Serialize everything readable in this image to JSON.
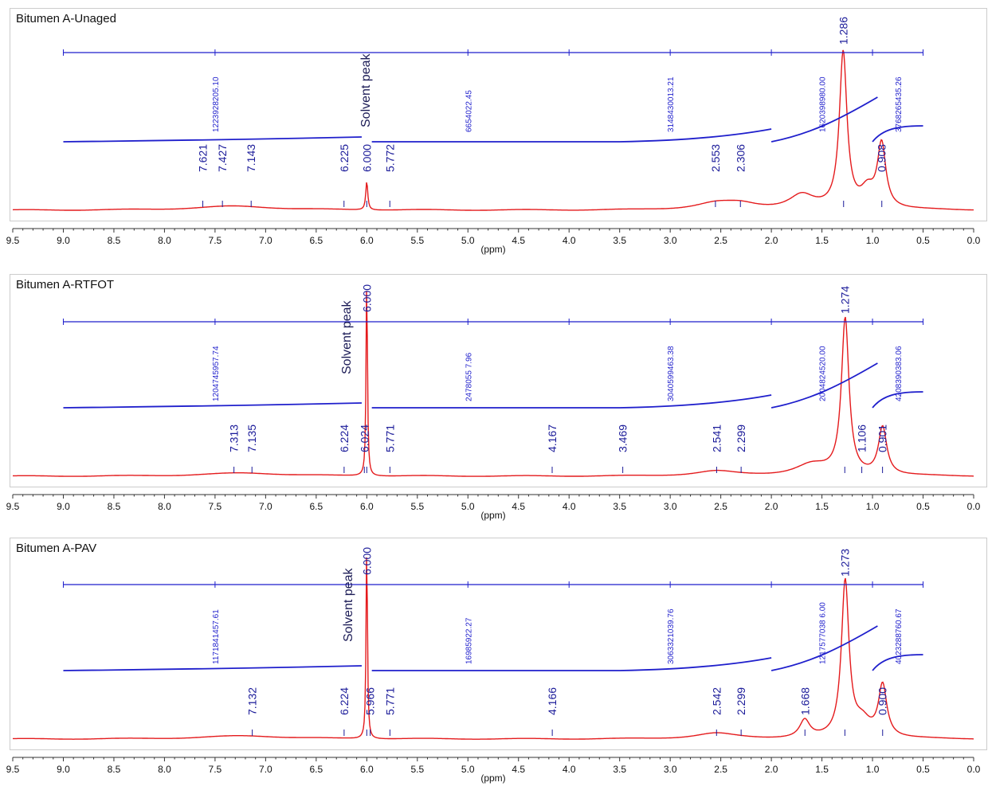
{
  "colors": {
    "spectrum": "#e41a1c",
    "integral": "#1f1fcc",
    "label": "#1a1a99",
    "axis": "#333333"
  },
  "axis_ticks": [
    "9.5",
    "9.0",
    "8.5",
    "8.0",
    "7.5",
    "7.0",
    "6.5",
    "6.0",
    "5.5",
    "5.0",
    "4.5",
    "4.0",
    "3.5",
    "3.0",
    "2.5",
    "2.0",
    "1.5",
    "1.0",
    "0.5",
    "0.0"
  ],
  "xlabel": "(ppm)",
  "solvent_label": "Solvent peak",
  "chart_data": [
    {
      "type": "line",
      "title": "Bitumen A-Unaged",
      "xlabel": "(ppm)",
      "xlim": [
        9.5,
        0.0
      ],
      "x_reversed": true,
      "peaks": [
        {
          "ppm": 7.621,
          "label": "7.621"
        },
        {
          "ppm": 7.427,
          "label": "7.427"
        },
        {
          "ppm": 7.143,
          "label": "7.143"
        },
        {
          "ppm": 6.225,
          "label": "6.225"
        },
        {
          "ppm": 6.0,
          "label": "6.000"
        },
        {
          "ppm": 5.772,
          "label": "5.772"
        },
        {
          "ppm": 2.553,
          "label": "2.553"
        },
        {
          "ppm": 2.306,
          "label": "2.306"
        },
        {
          "ppm": 1.286,
          "label": "1.286"
        },
        {
          "ppm": 0.908,
          "label": "0.908"
        }
      ],
      "integrals": [
        {
          "from": 9.0,
          "to": 6.0,
          "value": "1223928205.10"
        },
        {
          "from": 6.0,
          "to": 2.0,
          "value": "6654022.45"
        },
        {
          "from": 6.0,
          "to": 2.0,
          "value": "3148430013.21"
        },
        {
          "from": 2.0,
          "to": 1.0,
          "value": "1620398980.00"
        },
        {
          "from": 1.0,
          "to": 0.5,
          "value": "3768265435.26"
        }
      ]
    },
    {
      "type": "line",
      "title": "Bitumen A-RTFOT",
      "xlabel": "(ppm)",
      "xlim": [
        9.5,
        0.0
      ],
      "x_reversed": true,
      "peaks": [
        {
          "ppm": 7.313,
          "label": "7.313"
        },
        {
          "ppm": 7.135,
          "label": "7.135"
        },
        {
          "ppm": 6.224,
          "label": "6.224"
        },
        {
          "ppm": 6.024,
          "label": "6.024"
        },
        {
          "ppm": 6.0,
          "label": "6.000"
        },
        {
          "ppm": 5.771,
          "label": "5.771"
        },
        {
          "ppm": 4.167,
          "label": "4.167"
        },
        {
          "ppm": 3.469,
          "label": "3.469"
        },
        {
          "ppm": 2.541,
          "label": "2.541"
        },
        {
          "ppm": 2.299,
          "label": "2.299"
        },
        {
          "ppm": 1.274,
          "label": "1.274"
        },
        {
          "ppm": 1.106,
          "label": "1.106"
        },
        {
          "ppm": 0.901,
          "label": "0.901"
        }
      ],
      "integrals": [
        {
          "from": 9.0,
          "to": 6.05,
          "value": "1204745957.74"
        },
        {
          "from": 5.95,
          "to": 2.0,
          "value": "2478055 7.96"
        },
        {
          "from": 5.95,
          "to": 2.0,
          "value": "3040599463.38"
        },
        {
          "from": 2.0,
          "to": 1.0,
          "value": "2004824520.00"
        },
        {
          "from": 1.0,
          "to": 0.5,
          "value": "4208390383.06"
        }
      ]
    },
    {
      "type": "line",
      "title": "Bitumen A-PAV",
      "xlabel": "(ppm)",
      "xlim": [
        9.5,
        0.0
      ],
      "x_reversed": true,
      "peaks": [
        {
          "ppm": 7.132,
          "label": "7.132"
        },
        {
          "ppm": 6.224,
          "label": "6.224"
        },
        {
          "ppm": 6.0,
          "label": "6.000"
        },
        {
          "ppm": 5.966,
          "label": "5.966"
        },
        {
          "ppm": 5.771,
          "label": "5.771"
        },
        {
          "ppm": 4.166,
          "label": "4.166"
        },
        {
          "ppm": 2.542,
          "label": "2.542"
        },
        {
          "ppm": 2.299,
          "label": "2.299"
        },
        {
          "ppm": 1.668,
          "label": "1.668"
        },
        {
          "ppm": 1.273,
          "label": "1.273"
        },
        {
          "ppm": 0.9,
          "label": "0.900"
        }
      ],
      "integrals": [
        {
          "from": 9.0,
          "to": 6.05,
          "value": "1171841457.61"
        },
        {
          "from": 5.95,
          "to": 2.0,
          "value": "16985922.27"
        },
        {
          "from": 5.95,
          "to": 2.0,
          "value": "3063321039.76"
        },
        {
          "from": 2.0,
          "to": 1.0,
          "value": "1217577038 6.00"
        },
        {
          "from": 1.0,
          "to": 0.5,
          "value": "4023288760.67"
        }
      ]
    }
  ]
}
